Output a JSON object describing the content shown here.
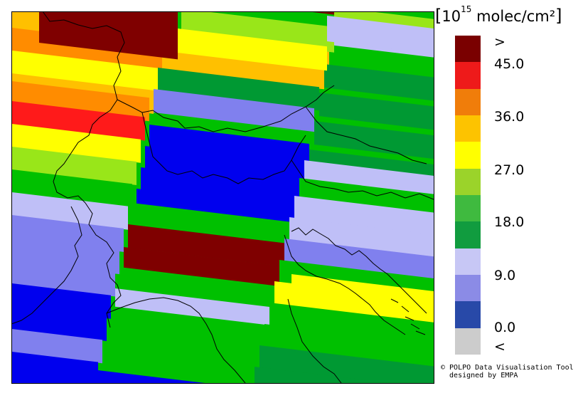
{
  "legend": {
    "unit_prefix": "10",
    "unit_exp": "15",
    "unit_rest": " molec/cm²",
    "bracket_open": "[",
    "bracket_close": "]",
    "colors": [
      "#7a0000",
      "#ee1a1a",
      "#f07d0a",
      "#fdc300",
      "#ffff00",
      "#9bd32a",
      "#3fba3f",
      "#119c3f",
      "#c7c7f5",
      "#8b8be6",
      "#2849a8",
      "#cccccc"
    ],
    "labels": [
      ">",
      "45.0",
      "36.0",
      "27.0",
      "18.0",
      "9.0",
      "0.0",
      "<"
    ]
  },
  "credit": {
    "line1": "© POLPO Data Visualisation Tool",
    "line2": "  designed by EMPA"
  },
  "map_colors": {
    "darkred": "#7f0000",
    "red": "#ff1a1a",
    "orange": "#ff8c00",
    "gold": "#ffc000",
    "yellow": "#ffff00",
    "lime": "#99e619",
    "green": "#00c000",
    "dkgreen": "#009933",
    "lavender": "#bfbff7",
    "periwinkle": "#8080ee",
    "blue": "#0000ee"
  }
}
